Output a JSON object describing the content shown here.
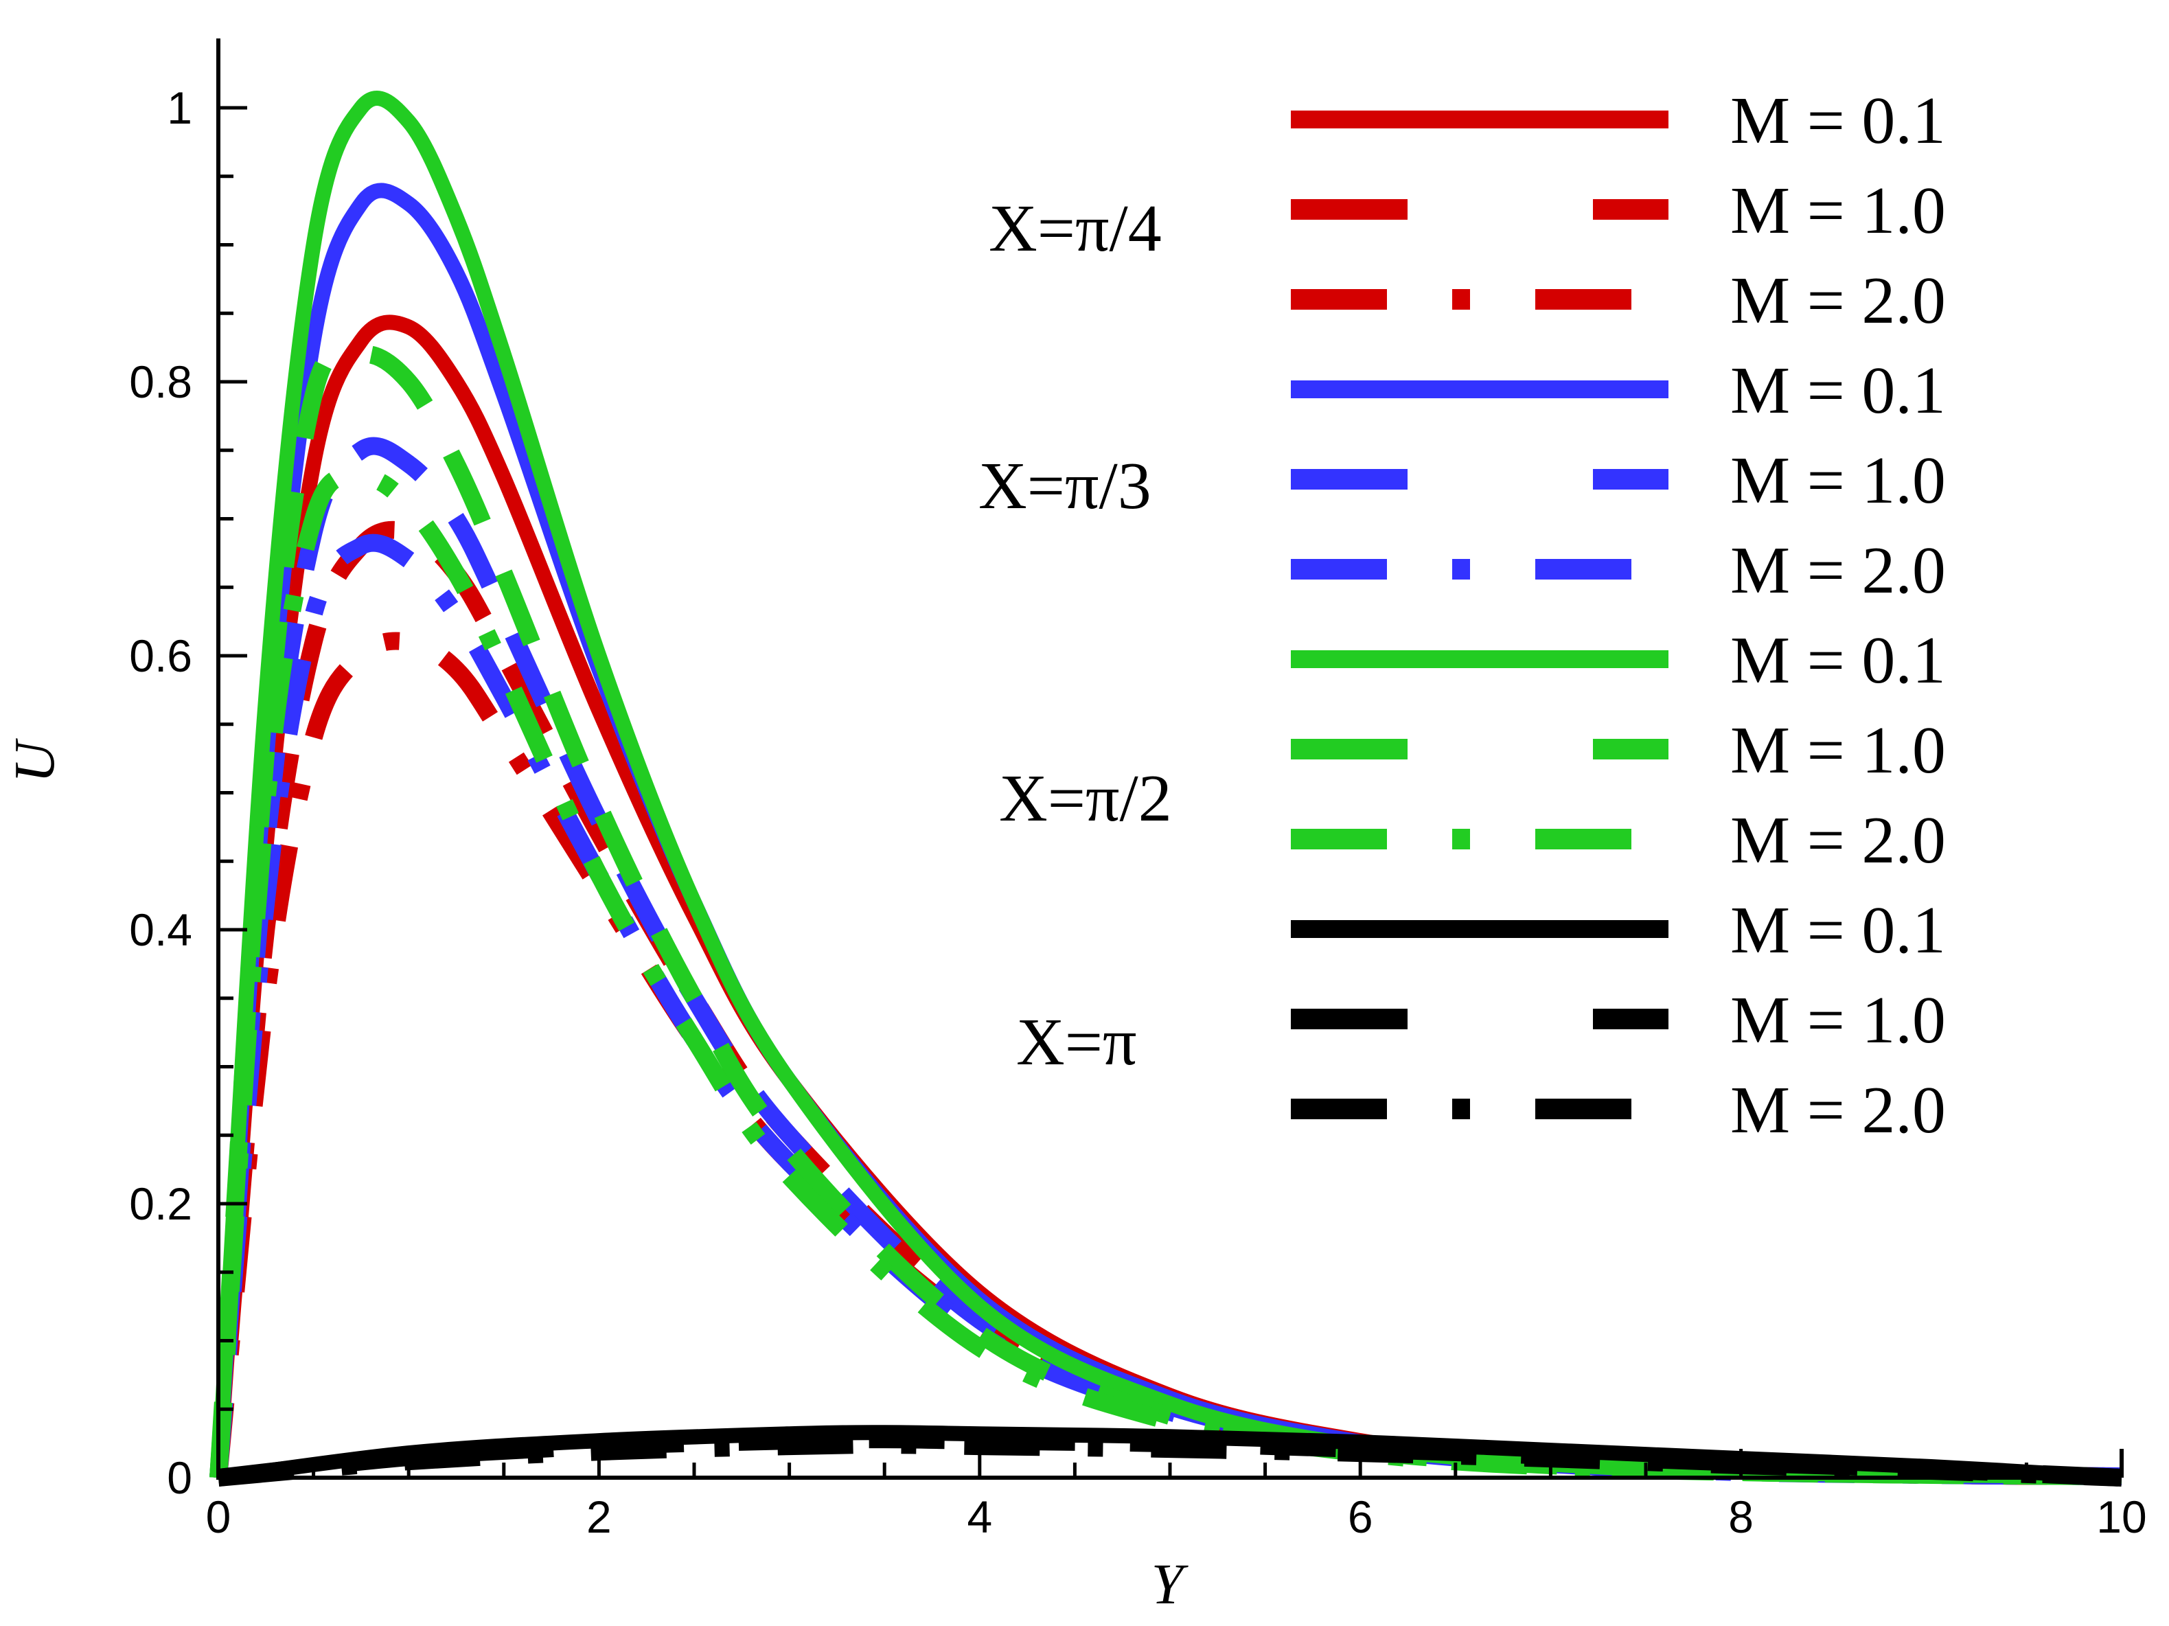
{
  "chart_data": {
    "type": "line",
    "xlabel": "Y",
    "ylabel": "U",
    "xlim": [
      0,
      10
    ],
    "ylim": [
      0,
      1.05
    ],
    "x_ticks": [
      "0",
      "2",
      "4",
      "6",
      "8",
      "10"
    ],
    "y_ticks": [
      "0",
      "0.2",
      "0.4",
      "0.6",
      "0.8",
      "1"
    ],
    "grid": false,
    "legend_position": "top-right",
    "group_labels": [
      "X=π/4",
      "X=π/3",
      "X=π/2",
      "X=π"
    ],
    "colors": {
      "X=π/4": "#d40000",
      "X=π/3": "#3333ff",
      "X=π/2": "#22cc22",
      "X=π": "#000000"
    },
    "series": [
      {
        "name": "M = 0.1",
        "group": "X=π/4",
        "style": "solid",
        "x": [
          0,
          0.25,
          0.5,
          0.75,
          1.0,
          1.25,
          1.5,
          2,
          2.5,
          3,
          4,
          5,
          6,
          7,
          8,
          9,
          10
        ],
        "y": [
          0,
          0.46,
          0.74,
          0.83,
          0.84,
          0.8,
          0.73,
          0.56,
          0.41,
          0.29,
          0.135,
          0.06,
          0.027,
          0.012,
          0.005,
          0.002,
          0.001
        ]
      },
      {
        "name": "M = 1.0",
        "group": "X=π/4",
        "style": "dashed",
        "x": [
          0,
          0.25,
          0.5,
          0.75,
          1.0,
          1.25,
          1.5,
          2,
          2.5,
          3,
          4,
          5,
          6,
          7,
          8,
          9,
          10
        ],
        "y": [
          0,
          0.4,
          0.61,
          0.68,
          0.69,
          0.66,
          0.6,
          0.47,
          0.35,
          0.25,
          0.12,
          0.055,
          0.025,
          0.011,
          0.005,
          0.002,
          0.001
        ]
      },
      {
        "name": "M = 2.0",
        "group": "X=π/4",
        "style": "dashdot",
        "x": [
          0,
          0.25,
          0.5,
          0.75,
          1.0,
          1.25,
          1.5,
          2,
          2.5,
          3,
          4,
          5,
          6,
          7,
          8,
          9,
          10
        ],
        "y": [
          0,
          0.35,
          0.54,
          0.6,
          0.61,
          0.59,
          0.54,
          0.43,
          0.32,
          0.23,
          0.11,
          0.05,
          0.023,
          0.01,
          0.005,
          0.002,
          0.001
        ]
      },
      {
        "name": "M = 0.1",
        "group": "X=π/3",
        "style": "solid",
        "x": [
          0,
          0.25,
          0.5,
          0.75,
          1.0,
          1.25,
          1.5,
          2,
          2.5,
          3,
          4,
          5,
          6,
          7,
          8,
          9,
          10
        ],
        "y": [
          0,
          0.52,
          0.83,
          0.93,
          0.93,
          0.88,
          0.79,
          0.59,
          0.42,
          0.29,
          0.13,
          0.058,
          0.026,
          0.011,
          0.005,
          0.002,
          0.001
        ]
      },
      {
        "name": "M = 1.0",
        "group": "X=π/3",
        "style": "dashed",
        "x": [
          0,
          0.25,
          0.5,
          0.75,
          1.0,
          1.25,
          1.5,
          2,
          2.5,
          3,
          4,
          5,
          6,
          7,
          8,
          9,
          10
        ],
        "y": [
          0,
          0.46,
          0.69,
          0.75,
          0.74,
          0.7,
          0.63,
          0.48,
          0.35,
          0.25,
          0.115,
          0.052,
          0.024,
          0.01,
          0.005,
          0.002,
          0.001
        ]
      },
      {
        "name": "M = 2.0",
        "group": "X=π/3",
        "style": "dashdot",
        "x": [
          0,
          0.25,
          0.5,
          0.75,
          1.0,
          1.25,
          1.5,
          2,
          2.5,
          3,
          4,
          5,
          6,
          7,
          8,
          9,
          10
        ],
        "y": [
          0,
          0.42,
          0.63,
          0.68,
          0.67,
          0.63,
          0.57,
          0.44,
          0.32,
          0.23,
          0.105,
          0.048,
          0.022,
          0.01,
          0.004,
          0.002,
          0.001
        ]
      },
      {
        "name": "M = 0.1",
        "group": "X=π/2",
        "style": "solid",
        "x": [
          0,
          0.25,
          0.5,
          0.75,
          1.0,
          1.25,
          1.5,
          2,
          2.5,
          3,
          4,
          5,
          6,
          7,
          8,
          9,
          10
        ],
        "y": [
          0,
          0.57,
          0.9,
          1.0,
          0.99,
          0.92,
          0.82,
          0.6,
          0.42,
          0.29,
          0.125,
          0.054,
          0.023,
          0.01,
          0.004,
          0.002,
          0.001
        ]
      },
      {
        "name": "M = 1.0",
        "group": "X=π/2",
        "style": "dashed",
        "x": [
          0,
          0.25,
          0.5,
          0.75,
          1.0,
          1.25,
          1.5,
          2,
          2.5,
          3,
          4,
          5,
          6,
          7,
          8,
          9,
          10
        ],
        "y": [
          0,
          0.53,
          0.79,
          0.82,
          0.8,
          0.74,
          0.66,
          0.49,
          0.35,
          0.24,
          0.105,
          0.045,
          0.02,
          0.009,
          0.004,
          0.002,
          0.001
        ]
      },
      {
        "name": "M = 2.0",
        "group": "X=π/2",
        "style": "dashdot",
        "x": [
          0,
          0.25,
          0.5,
          0.75,
          1.0,
          1.25,
          1.5,
          2,
          2.5,
          3,
          4,
          5,
          6,
          7,
          8,
          9,
          10
        ],
        "y": [
          0,
          0.49,
          0.7,
          0.73,
          0.71,
          0.66,
          0.59,
          0.44,
          0.32,
          0.22,
          0.095,
          0.041,
          0.018,
          0.008,
          0.004,
          0.002,
          0.001
        ]
      },
      {
        "name": "M = 0.1",
        "group": "X=π",
        "style": "solid",
        "x": [
          0,
          1,
          2,
          3,
          3.5,
          4,
          5,
          6,
          7,
          8,
          9,
          10
        ],
        "y": [
          0,
          0.018,
          0.027,
          0.032,
          0.033,
          0.032,
          0.03,
          0.026,
          0.02,
          0.014,
          0.008,
          0
        ]
      },
      {
        "name": "M = 1.0",
        "group": "X=π",
        "style": "dashed",
        "x": [
          0,
          1,
          2,
          3,
          3.5,
          4,
          5,
          6,
          7,
          8,
          9,
          10
        ],
        "y": [
          0,
          0.015,
          0.023,
          0.027,
          0.028,
          0.027,
          0.025,
          0.021,
          0.016,
          0.011,
          0.006,
          0
        ]
      },
      {
        "name": "M = 2.0",
        "group": "X=π",
        "style": "dashdot",
        "x": [
          0,
          1,
          2,
          3,
          3.5,
          4,
          5,
          6,
          7,
          8,
          9,
          10
        ],
        "y": [
          0,
          0.012,
          0.019,
          0.023,
          0.024,
          0.023,
          0.021,
          0.018,
          0.014,
          0.009,
          0.005,
          0
        ]
      }
    ]
  }
}
